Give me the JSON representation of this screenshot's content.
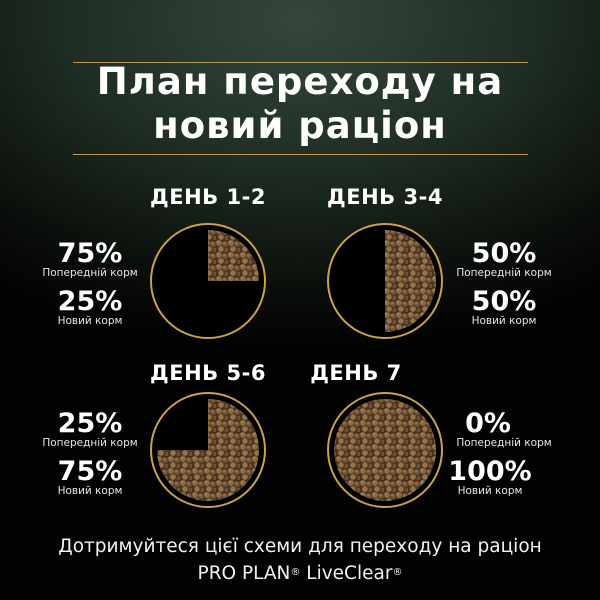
{
  "title": {
    "line1": "План переходу на",
    "line2": "новий раціон"
  },
  "colors": {
    "ring": "#c9a24a",
    "kibble": "#7a5a3a",
    "rule": "#b89a55"
  },
  "days": [
    {
      "label": "ДЕНЬ 1-2",
      "previous_pct": "75%",
      "previous_label": "Попередній корм",
      "new_pct": "25%",
      "new_label": "Новий корм",
      "new_fraction": 0.25
    },
    {
      "label": "ДЕНЬ 3-4",
      "previous_pct": "50%",
      "previous_label": "Попередній корм",
      "new_pct": "50%",
      "new_label": "Новий корм",
      "new_fraction": 0.5
    },
    {
      "label": "ДЕНЬ 5-6",
      "previous_pct": "25%",
      "previous_label": "Попередній корм",
      "new_pct": "75%",
      "new_label": "Новий корм",
      "new_fraction": 0.75
    },
    {
      "label": "ДЕНЬ 7",
      "previous_pct": "0%",
      "previous_label": "Попередній корм",
      "new_pct": "100%",
      "new_label": "Новий корм",
      "new_fraction": 1.0
    }
  ],
  "footer": {
    "line1": "Дотримуйтеся цієї схеми для переходу на раціон",
    "brand1": "PRO PLAN",
    "brand2": "LiveClear",
    "reg": "®"
  }
}
